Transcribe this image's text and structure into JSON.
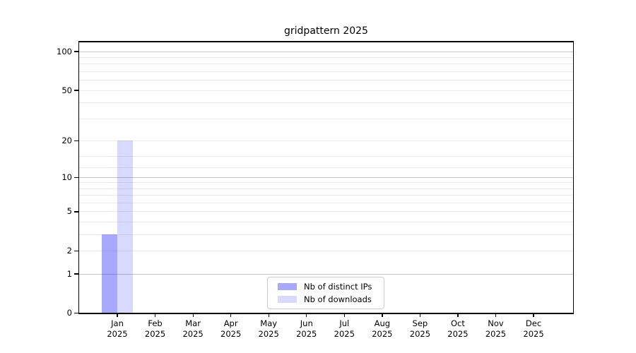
{
  "figure": {
    "background": "#ffffff"
  },
  "chart_data": {
    "type": "bar",
    "title": "gridpattern 2025",
    "months": [
      {
        "label": "Jan",
        "year": "2025"
      },
      {
        "label": "Feb",
        "year": "2025"
      },
      {
        "label": "Mar",
        "year": "2025"
      },
      {
        "label": "Apr",
        "year": "2025"
      },
      {
        "label": "May",
        "year": "2025"
      },
      {
        "label": "Jun",
        "year": "2025"
      },
      {
        "label": "Jul",
        "year": "2025"
      },
      {
        "label": "Aug",
        "year": "2025"
      },
      {
        "label": "Sep",
        "year": "2025"
      },
      {
        "label": "Oct",
        "year": "2025"
      },
      {
        "label": "Nov",
        "year": "2025"
      },
      {
        "label": "Dec",
        "year": "2025"
      }
    ],
    "series": [
      {
        "name": "Nb of distinct IPs",
        "color": "#0000FF57",
        "values": [
          3,
          0,
          0,
          0,
          0,
          0,
          0,
          0,
          0,
          0,
          0,
          0
        ]
      },
      {
        "name": "Nb of downloads",
        "color": "#0000FF26",
        "values": [
          20,
          0,
          0,
          0,
          0,
          0,
          0,
          0,
          0,
          0,
          0,
          0
        ]
      }
    ],
    "y_axis": {
      "scale": "log10(value+1)",
      "tick_values": [
        0,
        1,
        2,
        5,
        10,
        20,
        50,
        100
      ],
      "tick_labels": [
        "0",
        "1",
        "2",
        "5",
        "10",
        "20",
        "50",
        "100"
      ],
      "grid_dark_values": [
        1,
        10,
        100
      ],
      "grid_light_values": [
        2,
        3,
        4,
        5,
        6,
        7,
        8,
        9,
        12,
        15,
        20,
        30,
        40,
        50,
        60,
        70,
        80,
        90
      ],
      "ylim": [
        0,
        118
      ]
    },
    "grid": true,
    "legend_position": "lower center"
  },
  "colors": {
    "bar_distinct_ips": "#0000FF57",
    "bar_downloads": "#0000FF26",
    "grid_dark": "#c8c8c8",
    "grid_light": "#ebebeb",
    "axis": "#000000",
    "text": "#000000",
    "legend_border": "#cccccc"
  }
}
